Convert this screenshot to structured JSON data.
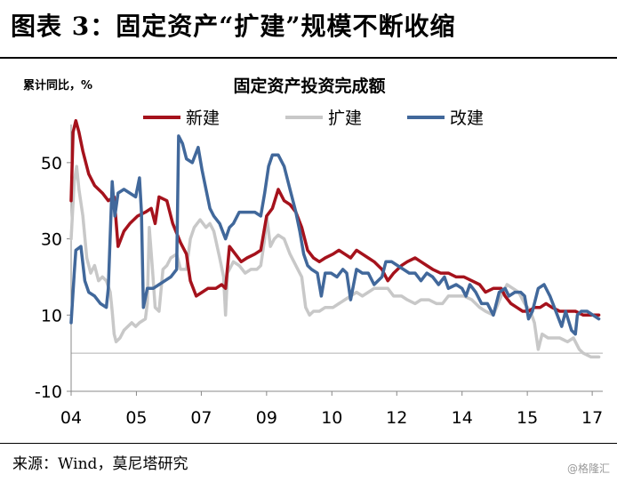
{
  "figure_title": "图表 3：固定资产“扩建”规模不断收缩",
  "source": "来源：Wind，莫尼塔研究",
  "watermark": "@格隆汇",
  "colors": {
    "new": "#a5121c",
    "expand": "#c8c8c8",
    "rebuild": "#41689b"
  },
  "chart_data": {
    "type": "line",
    "title": "固定资产投资完成额",
    "ylabel": "累计同比，%",
    "ylim": [
      -10,
      60
    ],
    "yticks": [
      -10,
      10,
      30,
      50
    ],
    "xlim": [
      2004.0,
      2017.6
    ],
    "xticks": [
      {
        "v": 2004,
        "label": "04"
      },
      {
        "v": 2005.67,
        "label": "05"
      },
      {
        "v": 2007.33,
        "label": "07"
      },
      {
        "v": 2009,
        "label": "09"
      },
      {
        "v": 2010.67,
        "label": "10"
      },
      {
        "v": 2012.33,
        "label": "12"
      },
      {
        "v": 2014,
        "label": "14"
      },
      {
        "v": 2015.67,
        "label": "15"
      },
      {
        "v": 2017.33,
        "label": "17"
      }
    ],
    "legend_position": "top",
    "series": [
      {
        "name": "新建",
        "key": "new",
        "points": [
          [
            2004.0,
            40
          ],
          [
            2004.05,
            58
          ],
          [
            2004.12,
            61
          ],
          [
            2004.2,
            58
          ],
          [
            2004.3,
            53
          ],
          [
            2004.45,
            47
          ],
          [
            2004.6,
            44
          ],
          [
            2004.8,
            42
          ],
          [
            2004.95,
            40
          ],
          [
            2005.1,
            41
          ],
          [
            2005.2,
            28
          ],
          [
            2005.35,
            32
          ],
          [
            2005.5,
            34
          ],
          [
            2005.7,
            36
          ],
          [
            2005.9,
            37
          ],
          [
            2006.05,
            38
          ],
          [
            2006.15,
            34
          ],
          [
            2006.25,
            41
          ],
          [
            2006.45,
            40
          ],
          [
            2006.6,
            34
          ],
          [
            2006.8,
            29
          ],
          [
            2006.95,
            26
          ],
          [
            2007.05,
            19
          ],
          [
            2007.2,
            15
          ],
          [
            2007.35,
            16
          ],
          [
            2007.5,
            17
          ],
          [
            2007.7,
            17
          ],
          [
            2007.85,
            18
          ],
          [
            2007.95,
            17
          ],
          [
            2008.05,
            28
          ],
          [
            2008.2,
            26
          ],
          [
            2008.35,
            24
          ],
          [
            2008.5,
            25
          ],
          [
            2008.7,
            26
          ],
          [
            2008.85,
            27
          ],
          [
            2009.0,
            36
          ],
          [
            2009.15,
            38
          ],
          [
            2009.3,
            43
          ],
          [
            2009.45,
            40
          ],
          [
            2009.6,
            39
          ],
          [
            2009.75,
            37
          ],
          [
            2009.9,
            33
          ],
          [
            2010.05,
            27
          ],
          [
            2010.2,
            25
          ],
          [
            2010.35,
            24
          ],
          [
            2010.5,
            25
          ],
          [
            2010.7,
            26
          ],
          [
            2010.85,
            27
          ],
          [
            2011.0,
            26
          ],
          [
            2011.15,
            25
          ],
          [
            2011.3,
            27
          ],
          [
            2011.45,
            26
          ],
          [
            2011.6,
            25
          ],
          [
            2011.75,
            24
          ],
          [
            2011.95,
            22
          ],
          [
            2012.1,
            19
          ],
          [
            2012.25,
            21
          ],
          [
            2012.45,
            23
          ],
          [
            2012.6,
            24
          ],
          [
            2012.8,
            25
          ],
          [
            2012.95,
            24
          ],
          [
            2013.1,
            23
          ],
          [
            2013.25,
            22
          ],
          [
            2013.45,
            21
          ],
          [
            2013.65,
            21
          ],
          [
            2013.85,
            20
          ],
          [
            2014.05,
            20
          ],
          [
            2014.25,
            19
          ],
          [
            2014.45,
            18
          ],
          [
            2014.6,
            16
          ],
          [
            2014.8,
            17
          ],
          [
            2015.0,
            17
          ],
          [
            2015.1,
            15
          ],
          [
            2015.25,
            13
          ],
          [
            2015.4,
            12
          ],
          [
            2015.55,
            11
          ],
          [
            2015.7,
            11
          ],
          [
            2015.85,
            12
          ],
          [
            2016.0,
            12
          ],
          [
            2016.15,
            13
          ],
          [
            2016.3,
            12
          ],
          [
            2016.5,
            11
          ],
          [
            2016.7,
            11
          ],
          [
            2016.9,
            11
          ],
          [
            2017.1,
            10
          ],
          [
            2017.3,
            10
          ],
          [
            2017.5,
            10
          ]
        ]
      },
      {
        "name": "扩建",
        "key": "expand",
        "points": [
          [
            2004.0,
            30
          ],
          [
            2004.08,
            45
          ],
          [
            2004.14,
            49
          ],
          [
            2004.2,
            43
          ],
          [
            2004.3,
            36
          ],
          [
            2004.4,
            25
          ],
          [
            2004.5,
            21
          ],
          [
            2004.6,
            23
          ],
          [
            2004.7,
            19
          ],
          [
            2004.8,
            20
          ],
          [
            2004.9,
            19
          ],
          [
            2005.0,
            16
          ],
          [
            2005.05,
            11
          ],
          [
            2005.1,
            5
          ],
          [
            2005.15,
            3
          ],
          [
            2005.25,
            4
          ],
          [
            2005.35,
            6
          ],
          [
            2005.45,
            7
          ],
          [
            2005.55,
            8
          ],
          [
            2005.65,
            7
          ],
          [
            2005.75,
            8
          ],
          [
            2005.9,
            9
          ],
          [
            2005.95,
            13
          ],
          [
            2006.0,
            33
          ],
          [
            2006.08,
            22
          ],
          [
            2006.15,
            12
          ],
          [
            2006.25,
            11
          ],
          [
            2006.35,
            22
          ],
          [
            2006.45,
            23
          ],
          [
            2006.55,
            25
          ],
          [
            2006.7,
            26
          ],
          [
            2006.8,
            22
          ],
          [
            2006.95,
            22
          ],
          [
            2007.05,
            30
          ],
          [
            2007.15,
            33
          ],
          [
            2007.3,
            35
          ],
          [
            2007.45,
            33
          ],
          [
            2007.55,
            34
          ],
          [
            2007.65,
            32
          ],
          [
            2007.8,
            25
          ],
          [
            2007.9,
            20
          ],
          [
            2007.95,
            10
          ],
          [
            2008.0,
            21
          ],
          [
            2008.15,
            24
          ],
          [
            2008.3,
            23
          ],
          [
            2008.45,
            21
          ],
          [
            2008.6,
            22
          ],
          [
            2008.75,
            22
          ],
          [
            2008.85,
            23
          ],
          [
            2008.95,
            30
          ],
          [
            2009.0,
            36
          ],
          [
            2009.1,
            28
          ],
          [
            2009.2,
            30
          ],
          [
            2009.3,
            31
          ],
          [
            2009.45,
            30
          ],
          [
            2009.6,
            26
          ],
          [
            2009.7,
            24
          ],
          [
            2009.8,
            22
          ],
          [
            2009.9,
            20
          ],
          [
            2009.95,
            16
          ],
          [
            2010.0,
            12
          ],
          [
            2010.1,
            10
          ],
          [
            2010.2,
            11
          ],
          [
            2010.35,
            11
          ],
          [
            2010.5,
            12
          ],
          [
            2010.7,
            12
          ],
          [
            2010.85,
            13
          ],
          [
            2011.0,
            14
          ],
          [
            2011.15,
            15
          ],
          [
            2011.3,
            16
          ],
          [
            2011.45,
            15
          ],
          [
            2011.6,
            16
          ],
          [
            2011.75,
            17
          ],
          [
            2011.95,
            17
          ],
          [
            2012.1,
            17
          ],
          [
            2012.25,
            15
          ],
          [
            2012.45,
            15
          ],
          [
            2012.6,
            14
          ],
          [
            2012.8,
            13
          ],
          [
            2012.95,
            14
          ],
          [
            2013.15,
            14
          ],
          [
            2013.35,
            13
          ],
          [
            2013.5,
            13
          ],
          [
            2013.65,
            15
          ],
          [
            2013.85,
            15
          ],
          [
            2014.05,
            15
          ],
          [
            2014.25,
            14
          ],
          [
            2014.45,
            12
          ],
          [
            2014.6,
            11
          ],
          [
            2014.8,
            10
          ],
          [
            2015.0,
            15
          ],
          [
            2015.15,
            18
          ],
          [
            2015.3,
            17
          ],
          [
            2015.45,
            16
          ],
          [
            2015.6,
            13
          ],
          [
            2015.75,
            11
          ],
          [
            2015.85,
            8
          ],
          [
            2015.95,
            1
          ],
          [
            2016.05,
            5
          ],
          [
            2016.2,
            4
          ],
          [
            2016.35,
            4
          ],
          [
            2016.5,
            4
          ],
          [
            2016.7,
            3
          ],
          [
            2016.85,
            4
          ],
          [
            2017.0,
            1
          ],
          [
            2017.1,
            0
          ],
          [
            2017.3,
            -1
          ],
          [
            2017.5,
            -1
          ]
        ]
      },
      {
        "name": "改建",
        "key": "rebuild",
        "points": [
          [
            2004.0,
            8
          ],
          [
            2004.08,
            21
          ],
          [
            2004.12,
            27
          ],
          [
            2004.25,
            28
          ],
          [
            2004.35,
            19
          ],
          [
            2004.45,
            16
          ],
          [
            2004.6,
            15
          ],
          [
            2004.75,
            13
          ],
          [
            2004.9,
            12
          ],
          [
            2004.95,
            17
          ],
          [
            2005.05,
            45
          ],
          [
            2005.12,
            36
          ],
          [
            2005.2,
            42
          ],
          [
            2005.35,
            43
          ],
          [
            2005.5,
            42
          ],
          [
            2005.65,
            41
          ],
          [
            2005.75,
            46
          ],
          [
            2005.8,
            37
          ],
          [
            2005.85,
            12
          ],
          [
            2005.95,
            17
          ],
          [
            2006.1,
            17
          ],
          [
            2006.25,
            18
          ],
          [
            2006.4,
            19
          ],
          [
            2006.55,
            20
          ],
          [
            2006.7,
            22
          ],
          [
            2006.75,
            57
          ],
          [
            2006.85,
            55
          ],
          [
            2006.95,
            51
          ],
          [
            2007.1,
            50
          ],
          [
            2007.25,
            54
          ],
          [
            2007.35,
            48
          ],
          [
            2007.45,
            43
          ],
          [
            2007.55,
            38
          ],
          [
            2007.65,
            36
          ],
          [
            2007.8,
            34
          ],
          [
            2007.95,
            30
          ],
          [
            2008.05,
            33
          ],
          [
            2008.15,
            34
          ],
          [
            2008.3,
            37
          ],
          [
            2008.5,
            37
          ],
          [
            2008.7,
            37
          ],
          [
            2008.85,
            36
          ],
          [
            2008.95,
            42
          ],
          [
            2009.05,
            49
          ],
          [
            2009.15,
            52
          ],
          [
            2009.3,
            52
          ],
          [
            2009.45,
            49
          ],
          [
            2009.6,
            43
          ],
          [
            2009.75,
            37
          ],
          [
            2009.85,
            32
          ],
          [
            2009.95,
            26
          ],
          [
            2010.05,
            23
          ],
          [
            2010.15,
            22
          ],
          [
            2010.3,
            21
          ],
          [
            2010.4,
            15
          ],
          [
            2010.5,
            21
          ],
          [
            2010.65,
            21
          ],
          [
            2010.8,
            20
          ],
          [
            2010.95,
            22
          ],
          [
            2011.05,
            21
          ],
          [
            2011.15,
            14
          ],
          [
            2011.3,
            22
          ],
          [
            2011.45,
            21
          ],
          [
            2011.6,
            21
          ],
          [
            2011.75,
            18
          ],
          [
            2011.95,
            20
          ],
          [
            2012.05,
            24
          ],
          [
            2012.2,
            24
          ],
          [
            2012.35,
            23
          ],
          [
            2012.5,
            22
          ],
          [
            2012.65,
            21
          ],
          [
            2012.8,
            21
          ],
          [
            2012.95,
            19
          ],
          [
            2013.1,
            21
          ],
          [
            2013.25,
            20
          ],
          [
            2013.4,
            18
          ],
          [
            2013.55,
            20
          ],
          [
            2013.65,
            17
          ],
          [
            2013.85,
            18
          ],
          [
            2014.0,
            17
          ],
          [
            2014.1,
            15
          ],
          [
            2014.2,
            18
          ],
          [
            2014.35,
            16
          ],
          [
            2014.5,
            13
          ],
          [
            2014.65,
            13
          ],
          [
            2014.8,
            10
          ],
          [
            2014.95,
            16
          ],
          [
            2015.1,
            17
          ],
          [
            2015.2,
            15
          ],
          [
            2015.35,
            16
          ],
          [
            2015.5,
            16
          ],
          [
            2015.6,
            15
          ],
          [
            2015.7,
            9
          ],
          [
            2015.8,
            11
          ],
          [
            2015.95,
            17
          ],
          [
            2016.1,
            18
          ],
          [
            2016.25,
            15
          ],
          [
            2016.4,
            11
          ],
          [
            2016.55,
            7
          ],
          [
            2016.65,
            11
          ],
          [
            2016.8,
            6
          ],
          [
            2016.9,
            5
          ],
          [
            2016.95,
            10
          ],
          [
            2017.05,
            11
          ],
          [
            2017.2,
            11
          ],
          [
            2017.35,
            10
          ],
          [
            2017.5,
            9
          ]
        ]
      }
    ]
  }
}
